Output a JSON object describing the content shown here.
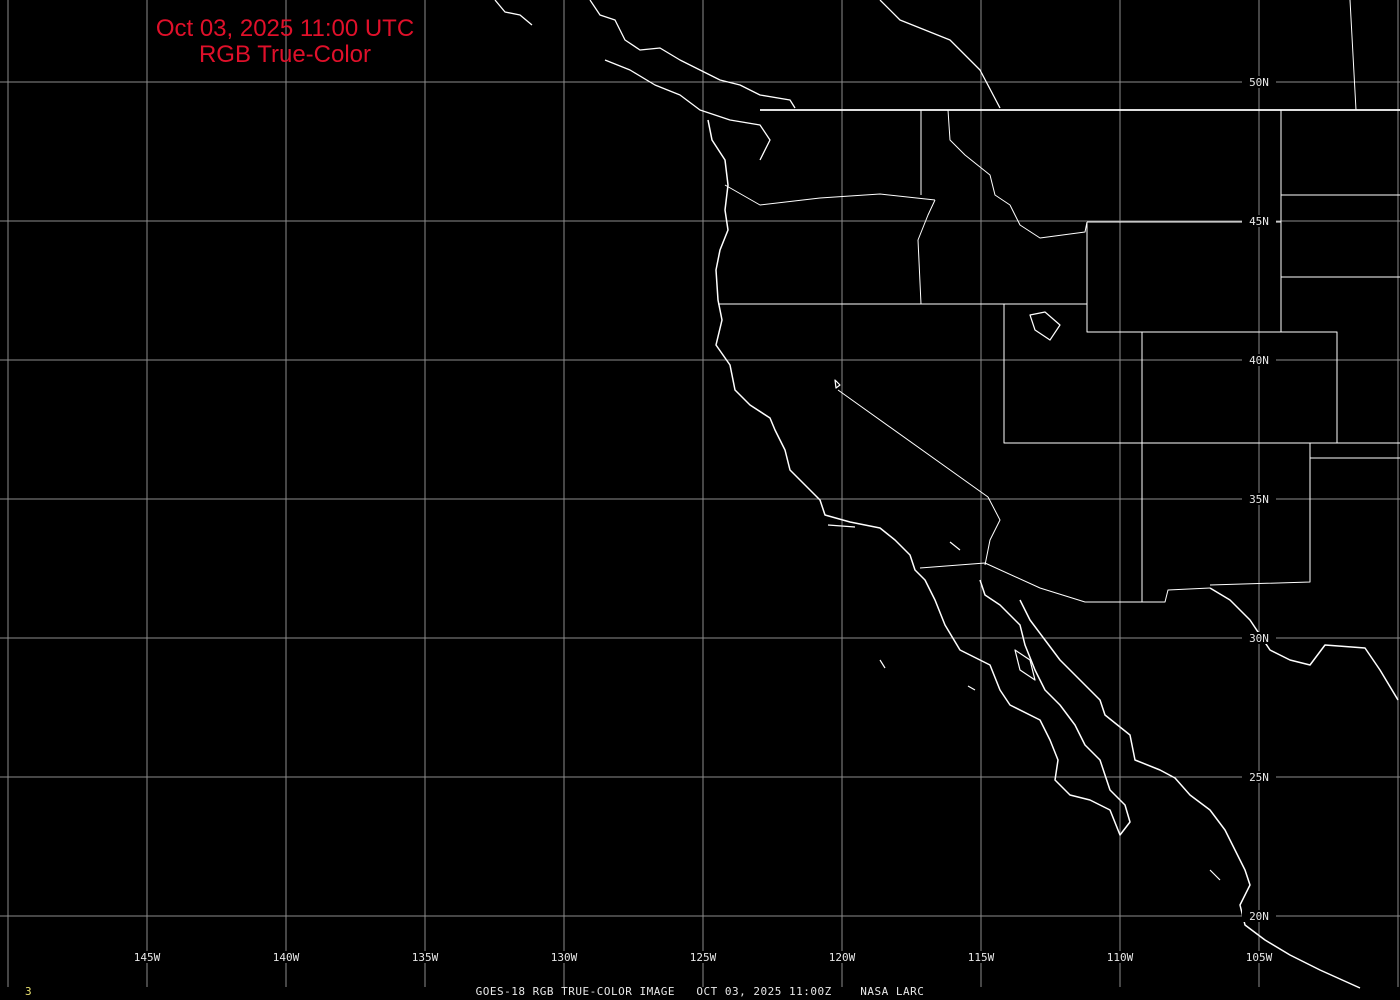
{
  "title": {
    "line1": "Oct 03, 2025 11:00 UTC",
    "line2": "RGB True-Color"
  },
  "caption": "GOES-18 RGB TRUE-COLOR IMAGE   OCT 03, 2025 11:00Z    NASA LARC",
  "frame_number": "3",
  "latitude_labels": [
    "50N",
    "45N",
    "40N",
    "35N",
    "30N",
    "25N",
    "20N"
  ],
  "longitude_labels": [
    "145W",
    "140W",
    "135W",
    "130W",
    "125W",
    "120W",
    "115W",
    "110W",
    "105W"
  ],
  "colors": {
    "background": "#000000",
    "grid": "#8c8c8c",
    "coastline": "#ffffff",
    "title": "#e0102a",
    "frame_number": "#e8e070"
  }
}
